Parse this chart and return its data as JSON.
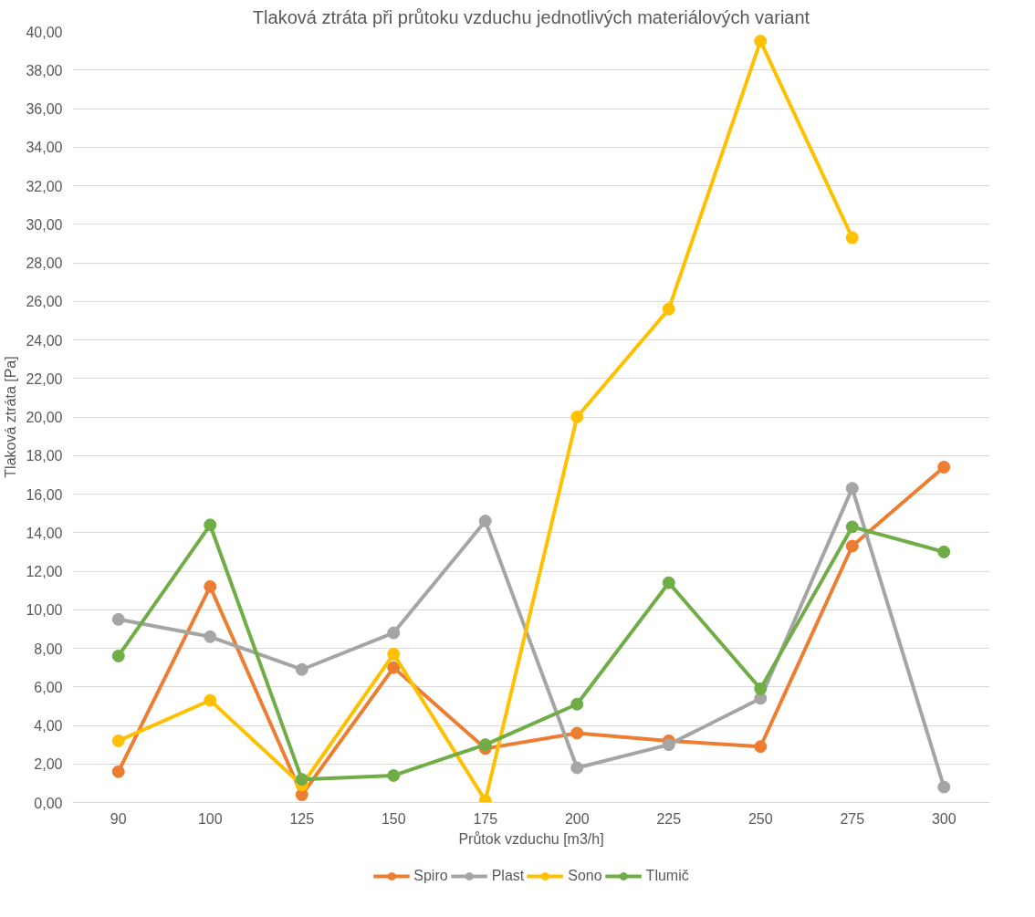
{
  "chart_data": {
    "type": "line",
    "title": "Tlaková ztráta při průtoku vzduchu jednotlivých materiálových variant",
    "xlabel": "Průtok vzduchu [m3/h]",
    "ylabel": "Tlaková ztráta [Pa]",
    "categories": [
      "90",
      "100",
      "125",
      "150",
      "175",
      "200",
      "225",
      "250",
      "275",
      "300"
    ],
    "series": [
      {
        "name": "Spiro",
        "color": "#ed7d31",
        "values": [
          1.6,
          11.2,
          0.4,
          7.0,
          2.8,
          3.6,
          3.2,
          2.9,
          13.3,
          17.4
        ]
      },
      {
        "name": "Plast",
        "color": "#a5a5a5",
        "values": [
          9.5,
          8.6,
          6.9,
          8.8,
          14.6,
          1.8,
          3.0,
          5.4,
          16.3,
          0.8
        ]
      },
      {
        "name": "Sono",
        "color": "#ffc000",
        "values": [
          3.2,
          5.3,
          0.9,
          7.7,
          0.1,
          20.0,
          25.6,
          39.5,
          29.3,
          null
        ]
      },
      {
        "name": "Tlumič",
        "color": "#70ad47",
        "values": [
          7.6,
          14.4,
          1.2,
          1.4,
          3.0,
          5.1,
          11.4,
          5.9,
          14.3,
          13.0
        ]
      }
    ],
    "ylim": [
      0,
      40
    ],
    "yticks": [
      {
        "value": 0,
        "label": "0,00"
      },
      {
        "value": 2,
        "label": "2,00"
      },
      {
        "value": 4,
        "label": "4,00"
      },
      {
        "value": 6,
        "label": "6,00"
      },
      {
        "value": 8,
        "label": "8,00"
      },
      {
        "value": 10,
        "label": "10,00"
      },
      {
        "value": 12,
        "label": "12,00"
      },
      {
        "value": 14,
        "label": "14,00"
      },
      {
        "value": 16,
        "label": "16,00"
      },
      {
        "value": 18,
        "label": "18,00"
      },
      {
        "value": 20,
        "label": "20,00"
      },
      {
        "value": 22,
        "label": "22,00"
      },
      {
        "value": 24,
        "label": "24,00"
      },
      {
        "value": 26,
        "label": "26,00"
      },
      {
        "value": 28,
        "label": "28,00"
      },
      {
        "value": 30,
        "label": "30,00"
      },
      {
        "value": 32,
        "label": "32,00"
      },
      {
        "value": 34,
        "label": "34,00"
      },
      {
        "value": 36,
        "label": "36,00"
      },
      {
        "value": 38,
        "label": "38,00"
      },
      {
        "value": 40,
        "label": "40,00"
      }
    ],
    "grid": "y",
    "legend": "bottom",
    "marker": "circle",
    "line_style": "solid"
  }
}
